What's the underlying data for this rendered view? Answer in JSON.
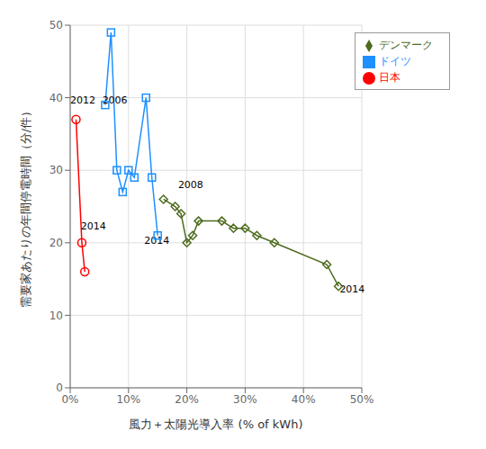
{
  "chart_data": {
    "type": "line",
    "xlabel": "風力＋太陽光導入率 (% of kWh)",
    "ylabel": "需要家あたりの年間停電時間（分/件）",
    "series": [
      {
        "name": "デンマーク",
        "color": "#4d6b1e",
        "marker": "diamond",
        "x": [
          0.16,
          0.18,
          0.19,
          0.2,
          0.21,
          0.22,
          0.26,
          0.28,
          0.3,
          0.32,
          0.35,
          0.44,
          0.46
        ],
        "values": [
          26,
          25,
          24,
          20,
          21,
          23,
          23,
          22,
          22,
          21,
          20,
          17,
          14
        ]
      },
      {
        "name": "ドイツ",
        "color": "#1E90FF",
        "marker": "square",
        "x": [
          0.06,
          0.07,
          0.08,
          0.09,
          0.1,
          0.11,
          0.13,
          0.14,
          0.15
        ],
        "values": [
          39,
          49,
          30,
          27,
          30,
          29,
          40,
          29,
          21
        ]
      },
      {
        "name": "日本",
        "color": "#FF0000",
        "marker": "circle",
        "x": [
          0.01,
          0.02,
          0.025
        ],
        "values": [
          37,
          20,
          16
        ]
      }
    ],
    "annotations": [
      {
        "text": "2008",
        "x": 0.185,
        "y": 27.2
      },
      {
        "text": "2014",
        "x": 0.462,
        "y": 12.8
      },
      {
        "text": "2006",
        "x": 0.055,
        "y": 38.8
      },
      {
        "text": "2014",
        "x": 0.127,
        "y": 19.5
      },
      {
        "text": "2012",
        "x": 0.0,
        "y": 38.8
      },
      {
        "text": "2014",
        "x": 0.018,
        "y": 21.5
      }
    ],
    "xlim": [
      0,
      0.5
    ],
    "ylim": [
      0,
      50
    ],
    "xticks": [
      {
        "value": 0,
        "label": "0%"
      },
      {
        "value": 0.1,
        "label": "10%"
      },
      {
        "value": 0.2,
        "label": "20%"
      },
      {
        "value": 0.3,
        "label": "30%"
      },
      {
        "value": 0.4,
        "label": "40%"
      },
      {
        "value": 0.5,
        "label": "50%"
      }
    ],
    "yticks": [
      0,
      10,
      20,
      30,
      40,
      50
    ],
    "grid": true,
    "legend": "upper right"
  }
}
